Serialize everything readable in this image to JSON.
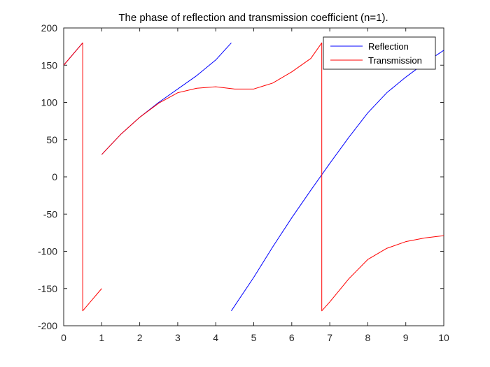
{
  "chart_data": {
    "type": "line",
    "title": "The phase of reflection and transmission coefficient (n=1).",
    "xlabel": "",
    "ylabel": "",
    "xlim": [
      0,
      10
    ],
    "ylim": [
      -200,
      200
    ],
    "x_ticks": [
      0,
      1,
      2,
      3,
      4,
      5,
      6,
      7,
      8,
      9,
      10
    ],
    "y_ticks": [
      -200,
      -150,
      -100,
      -50,
      0,
      50,
      100,
      150,
      200
    ],
    "x_tick_labels": [
      "0",
      "1",
      "2",
      "3",
      "4",
      "5",
      "6",
      "7",
      "8",
      "9",
      "10"
    ],
    "y_tick_labels": [
      "-200",
      "-150",
      "-100",
      "-50",
      "0",
      "50",
      "100",
      "150",
      "200"
    ],
    "grid": false,
    "legend_position": "top-right",
    "series": [
      {
        "name": "Reflection",
        "color": "#0000ff",
        "segments": [
          [
            [
              0,
              150
            ],
            [
              0.5,
              180
            ]
          ],
          [
            [
              1,
              30
            ],
            [
              1.5,
              57
            ],
            [
              2,
              80
            ],
            [
              2.5,
              100
            ],
            [
              3,
              118
            ],
            [
              3.5,
              136
            ],
            [
              4,
              157
            ],
            [
              4.41,
              180
            ]
          ],
          [
            [
              4.41,
              -180
            ],
            [
              5,
              -135
            ],
            [
              5.5,
              -94
            ],
            [
              6,
              -55
            ],
            [
              6.5,
              -18
            ],
            [
              7,
              18
            ],
            [
              7.5,
              53
            ],
            [
              8,
              86
            ],
            [
              8.5,
              113
            ],
            [
              9,
              134
            ],
            [
              9.5,
              153
            ],
            [
              10,
              170
            ]
          ]
        ]
      },
      {
        "name": "Transmission",
        "color": "#ff0000",
        "segments": [
          [
            [
              0,
              150
            ],
            [
              0.5,
              180
            ],
            [
              0.5,
              -180
            ],
            [
              1,
              -150
            ]
          ],
          [
            [
              1,
              30
            ],
            [
              1.5,
              57
            ],
            [
              2,
              80
            ],
            [
              2.5,
              99
            ],
            [
              3,
              113
            ],
            [
              3.5,
              119
            ],
            [
              4,
              121
            ],
            [
              4.5,
              118
            ],
            [
              5,
              118
            ],
            [
              5.5,
              126
            ],
            [
              6,
              141
            ],
            [
              6.5,
              159
            ],
            [
              6.79,
              180
            ],
            [
              6.79,
              -180
            ],
            [
              7,
              -168
            ],
            [
              7.5,
              -137
            ],
            [
              8,
              -111
            ],
            [
              8.5,
              -96
            ],
            [
              9,
              -87
            ],
            [
              9.5,
              -82
            ],
            [
              10,
              -79
            ]
          ]
        ]
      }
    ]
  }
}
